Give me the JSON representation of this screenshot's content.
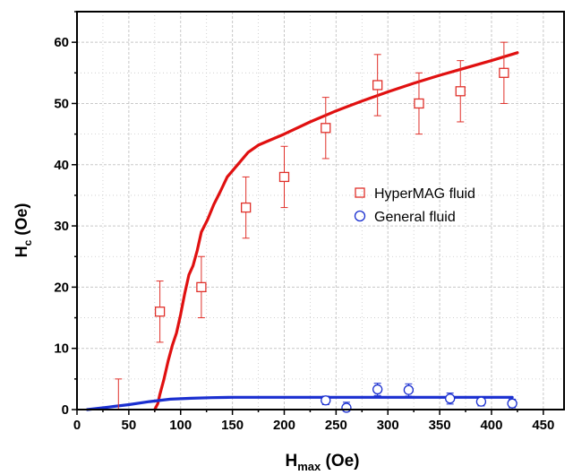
{
  "chart_data": {
    "type": "scatter",
    "xlabel": {
      "main": "H",
      "sub": "max",
      "rest": " (Oe)"
    },
    "ylabel": {
      "main": "H",
      "sub": "c",
      "rest": " (Oe)"
    },
    "xlim": [
      0,
      470
    ],
    "ylim": [
      0,
      65
    ],
    "xticks": [
      "0",
      "50",
      "100",
      "150",
      "200",
      "250",
      "300",
      "350",
      "400",
      "450"
    ],
    "yticks": [
      "0",
      "10",
      "20",
      "30",
      "40",
      "50",
      "60"
    ],
    "grid": true,
    "legend": {
      "placement": "center-right"
    },
    "series": [
      {
        "name": "HyperMAG fluid",
        "marker": "square",
        "color": "#e0302a",
        "points": [
          {
            "x": 40,
            "y": 0,
            "err": 5
          },
          {
            "x": 80,
            "y": 16,
            "err": 5
          },
          {
            "x": 120,
            "y": 20,
            "err": 5
          },
          {
            "x": 163,
            "y": 33,
            "err": 5
          },
          {
            "x": 200,
            "y": 38,
            "err": 5
          },
          {
            "x": 240,
            "y": 46,
            "err": 5
          },
          {
            "x": 290,
            "y": 53,
            "err": 5
          },
          {
            "x": 330,
            "y": 50,
            "err": 5
          },
          {
            "x": 370,
            "y": 52,
            "err": 5
          },
          {
            "x": 412,
            "y": 55,
            "err": 5
          }
        ]
      },
      {
        "name": "General fluid",
        "marker": "circle",
        "color": "#1a2fd0",
        "points": [
          {
            "x": 240,
            "y": 1.5,
            "err": 0.7
          },
          {
            "x": 260,
            "y": 0.3,
            "err": 0.9
          },
          {
            "x": 290,
            "y": 3.3,
            "err": 1.0
          },
          {
            "x": 320,
            "y": 3.2,
            "err": 1.0
          },
          {
            "x": 360,
            "y": 1.8,
            "err": 0.9
          },
          {
            "x": 390,
            "y": 1.3,
            "err": 0.7
          },
          {
            "x": 420,
            "y": 1.0,
            "err": 0.7
          }
        ]
      }
    ],
    "fits": [
      {
        "color": "#e01010",
        "points": [
          [
            75,
            0
          ],
          [
            78,
            1
          ],
          [
            80,
            2.5
          ],
          [
            84,
            5
          ],
          [
            88,
            8
          ],
          [
            92,
            10.5
          ],
          [
            96,
            12.5
          ],
          [
            100,
            15.5
          ],
          [
            104,
            19
          ],
          [
            108,
            22
          ],
          [
            112,
            23.5
          ],
          [
            116,
            26
          ],
          [
            120,
            29
          ],
          [
            126,
            31
          ],
          [
            132,
            33.5
          ],
          [
            138,
            35.5
          ],
          [
            145,
            38
          ],
          [
            155,
            40
          ],
          [
            165,
            42
          ],
          [
            175,
            43.2
          ],
          [
            200,
            45
          ],
          [
            225,
            47
          ],
          [
            250,
            48.8
          ],
          [
            275,
            50.4
          ],
          [
            300,
            51.9
          ],
          [
            325,
            53.3
          ],
          [
            350,
            54.6
          ],
          [
            375,
            55.8
          ],
          [
            400,
            57
          ],
          [
            425,
            58.3
          ]
        ]
      },
      {
        "color": "#1a2fd0",
        "points": [
          [
            10,
            0
          ],
          [
            30,
            0.4
          ],
          [
            50,
            0.8
          ],
          [
            70,
            1.3
          ],
          [
            90,
            1.7
          ],
          [
            110,
            1.85
          ],
          [
            130,
            1.95
          ],
          [
            150,
            2
          ],
          [
            200,
            2
          ],
          [
            300,
            2
          ],
          [
            420,
            2
          ]
        ]
      }
    ]
  }
}
